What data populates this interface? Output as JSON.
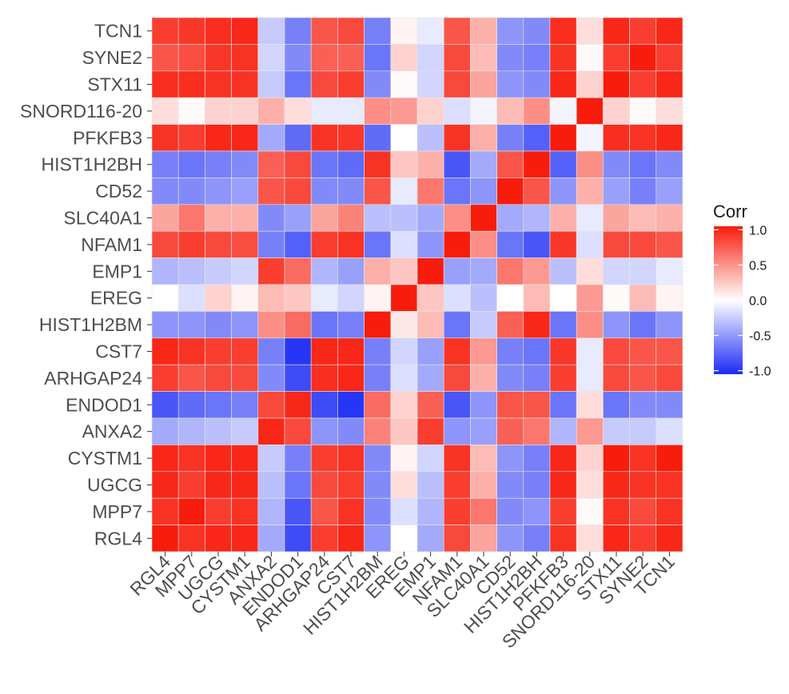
{
  "chart_data": {
    "type": "heatmap",
    "title": "",
    "x_categories": [
      "RGL4",
      "MPP7",
      "UGCG",
      "CYSTM1",
      "ANXA2",
      "ENDOD1",
      "ARHGAP24",
      "CST7",
      "HIST1H2BM",
      "EREG",
      "EMP1",
      "NFAM1",
      "SLC40A1",
      "CD52",
      "HIST1H2BH",
      "PFKFB3",
      "SNORD116-20",
      "STX11",
      "SYNE2",
      "TCN1"
    ],
    "y_categories_top_to_bottom": [
      "TCN1",
      "SYNE2",
      "STX11",
      "SNORD116-20",
      "PFKFB3",
      "HIST1H2BH",
      "CD52",
      "SLC40A1",
      "NFAM1",
      "EMP1",
      "EREG",
      "HIST1H2BM",
      "CST7",
      "ARHGAP24",
      "ENDOD1",
      "ANXA2",
      "CYSTM1",
      "UGCG",
      "MPP7",
      "RGL4"
    ],
    "values": [
      [
        0.85,
        0.88,
        0.92,
        0.95,
        -0.25,
        -0.6,
        0.75,
        0.8,
        -0.6,
        0.05,
        -0.1,
        0.75,
        0.35,
        -0.5,
        -0.55,
        0.92,
        0.15,
        0.95,
        0.85,
        0.95
      ],
      [
        0.75,
        0.78,
        0.88,
        0.9,
        -0.2,
        -0.55,
        0.7,
        0.7,
        -0.65,
        0.2,
        -0.2,
        0.8,
        0.3,
        -0.55,
        -0.6,
        0.9,
        0.02,
        0.85,
        1.0,
        0.85
      ],
      [
        0.92,
        0.92,
        0.9,
        0.9,
        -0.25,
        -0.65,
        0.8,
        0.85,
        -0.55,
        0.02,
        -0.2,
        0.8,
        0.4,
        -0.5,
        -0.55,
        0.95,
        0.2,
        1.0,
        0.85,
        0.95
      ],
      [
        0.15,
        0.02,
        0.2,
        0.2,
        0.35,
        0.15,
        -0.1,
        -0.1,
        0.5,
        0.45,
        0.2,
        -0.15,
        -0.05,
        0.3,
        0.5,
        -0.05,
        1.0,
        0.2,
        0.02,
        0.15
      ],
      [
        0.9,
        0.85,
        0.95,
        0.95,
        -0.4,
        -0.7,
        0.9,
        0.88,
        -0.7,
        0.0,
        -0.3,
        0.9,
        0.35,
        -0.6,
        -0.75,
        1.0,
        -0.05,
        0.92,
        0.9,
        0.95
      ],
      [
        -0.6,
        -0.65,
        -0.6,
        -0.55,
        0.7,
        0.8,
        -0.65,
        -0.7,
        0.9,
        0.25,
        0.35,
        -0.8,
        -0.4,
        0.75,
        1.0,
        -0.75,
        0.5,
        -0.55,
        -0.65,
        -0.55
      ],
      [
        -0.55,
        -0.55,
        -0.5,
        -0.45,
        0.75,
        0.8,
        -0.55,
        -0.55,
        0.75,
        -0.1,
        0.6,
        -0.65,
        -0.5,
        1.0,
        0.75,
        -0.5,
        0.35,
        -0.45,
        -0.6,
        -0.45
      ],
      [
        0.4,
        0.6,
        0.35,
        0.35,
        -0.55,
        -0.45,
        0.4,
        0.55,
        -0.3,
        -0.3,
        -0.4,
        0.5,
        1.0,
        -0.4,
        -0.35,
        0.35,
        -0.1,
        0.4,
        0.3,
        0.35
      ],
      [
        0.8,
        0.85,
        0.8,
        0.78,
        -0.6,
        -0.75,
        0.85,
        0.9,
        -0.65,
        -0.15,
        -0.5,
        1.0,
        0.5,
        -0.65,
        -0.8,
        0.88,
        -0.15,
        0.8,
        0.8,
        0.75
      ],
      [
        -0.35,
        -0.3,
        -0.25,
        -0.2,
        0.85,
        0.65,
        -0.35,
        -0.45,
        0.35,
        0.25,
        1.0,
        -0.45,
        -0.4,
        0.6,
        0.45,
        -0.3,
        0.15,
        -0.2,
        -0.2,
        -0.1
      ],
      [
        0.0,
        -0.15,
        0.2,
        0.05,
        0.3,
        0.25,
        -0.1,
        -0.2,
        0.05,
        1.0,
        0.25,
        -0.15,
        -0.3,
        0.0,
        0.3,
        0.0,
        0.45,
        0.02,
        0.3,
        0.05
      ],
      [
        -0.5,
        -0.5,
        -0.55,
        -0.5,
        0.5,
        0.65,
        -0.65,
        -0.6,
        1.0,
        0.1,
        0.3,
        -0.65,
        -0.25,
        0.7,
        0.95,
        -0.65,
        0.5,
        -0.5,
        -0.65,
        -0.5
      ],
      [
        0.95,
        0.9,
        0.85,
        0.85,
        -0.6,
        -0.95,
        0.95,
        0.95,
        -0.6,
        -0.2,
        -0.45,
        0.9,
        0.45,
        -0.6,
        -0.65,
        0.88,
        -0.1,
        0.8,
        0.75,
        0.75
      ],
      [
        0.85,
        0.75,
        0.8,
        0.8,
        -0.55,
        -0.85,
        0.92,
        0.95,
        -0.6,
        -0.15,
        -0.4,
        0.8,
        0.35,
        -0.55,
        -0.6,
        0.85,
        -0.1,
        0.8,
        0.75,
        0.8
      ],
      [
        -0.8,
        -0.7,
        -0.65,
        -0.6,
        0.8,
        0.95,
        -0.85,
        -0.95,
        0.65,
        0.2,
        0.7,
        -0.8,
        -0.5,
        0.75,
        0.75,
        -0.65,
        0.15,
        -0.65,
        -0.55,
        -0.55
      ],
      [
        -0.4,
        -0.35,
        -0.3,
        -0.25,
        0.95,
        0.8,
        -0.5,
        -0.55,
        0.55,
        0.25,
        0.85,
        -0.5,
        -0.45,
        0.7,
        0.6,
        -0.35,
        0.45,
        -0.25,
        -0.25,
        -0.15
      ],
      [
        0.95,
        0.9,
        0.95,
        0.95,
        -0.25,
        -0.6,
        0.85,
        0.9,
        -0.55,
        0.05,
        -0.2,
        0.9,
        0.3,
        -0.5,
        -0.6,
        0.95,
        0.2,
        1.0,
        0.9,
        1.0
      ],
      [
        0.95,
        0.85,
        0.95,
        0.95,
        -0.3,
        -0.65,
        0.8,
        0.85,
        -0.55,
        0.15,
        -0.3,
        0.85,
        0.35,
        -0.55,
        -0.6,
        0.95,
        0.15,
        0.95,
        0.9,
        0.9
      ],
      [
        0.9,
        1.0,
        0.85,
        0.9,
        -0.35,
        -0.8,
        0.75,
        0.9,
        -0.55,
        -0.15,
        -0.35,
        0.85,
        0.6,
        -0.55,
        -0.5,
        0.85,
        0.02,
        0.9,
        0.8,
        0.9
      ],
      [
        1.0,
        0.9,
        0.95,
        0.95,
        -0.4,
        -0.85,
        0.85,
        0.95,
        -0.5,
        0.0,
        -0.4,
        0.8,
        0.4,
        -0.5,
        -0.6,
        0.9,
        0.15,
        0.95,
        0.85,
        0.95
      ]
    ],
    "scale": {
      "min": -1.0,
      "max": 1.0,
      "low_color": "#1c2bf5",
      "mid_color": "#ffffff",
      "high_color": "#f81c0c"
    },
    "legend": {
      "title": "Corr",
      "ticks": [
        1.0,
        0.5,
        0.0,
        -0.5,
        -1.0
      ],
      "tick_labels": [
        "1.0",
        "0.5",
        "0.0",
        "-0.5",
        "-1.0"
      ],
      "placement": "right"
    }
  }
}
